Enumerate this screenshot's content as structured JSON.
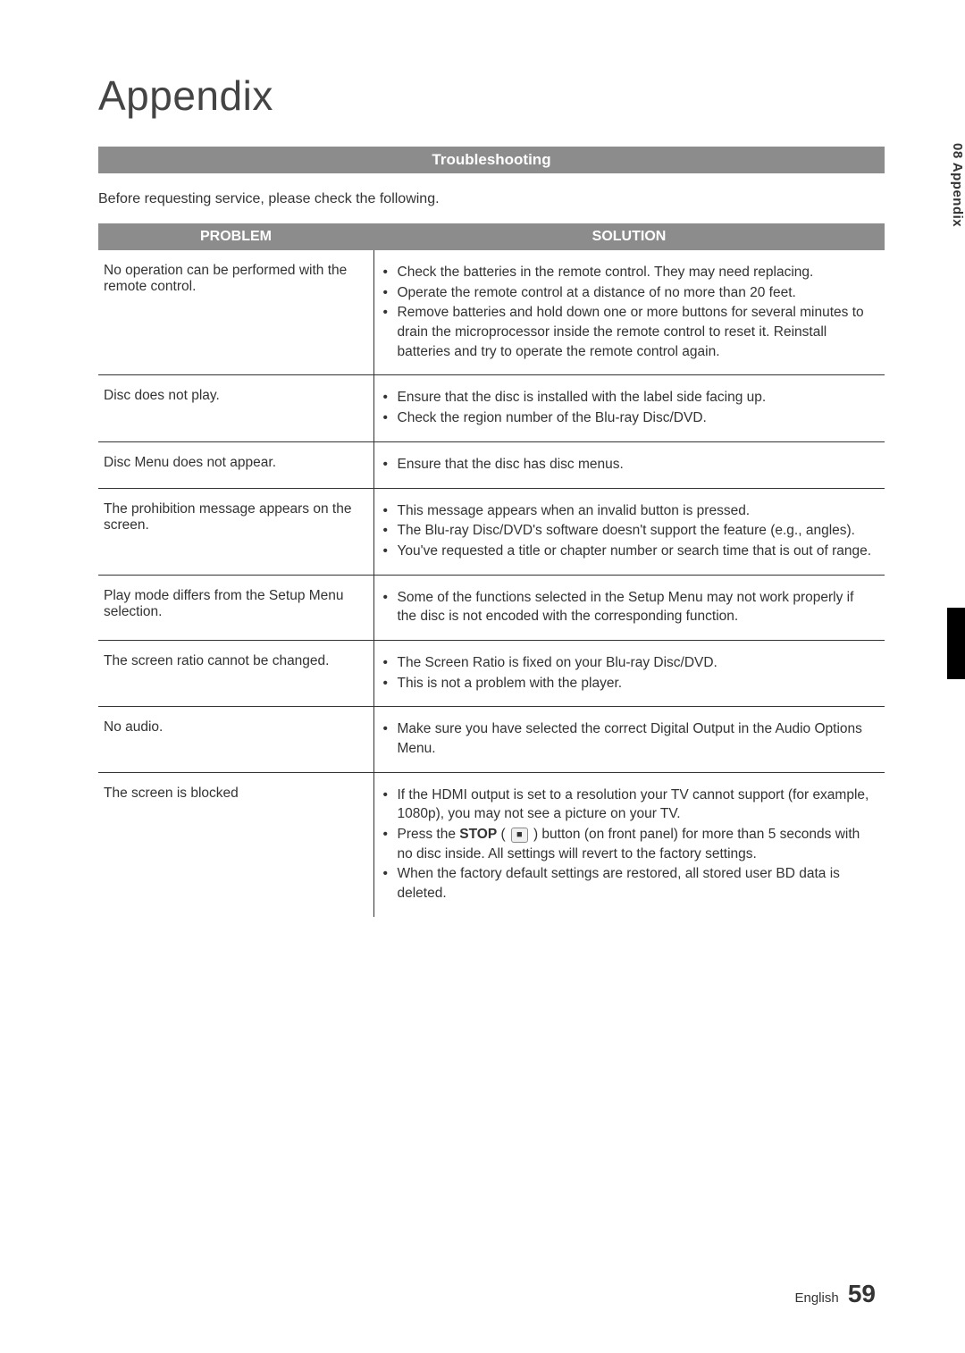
{
  "page_title": "Appendix",
  "section_header": "Troubleshooting",
  "intro_text": "Before requesting service, please check the following.",
  "side_tab": "08  Appendix",
  "table": {
    "columns": [
      "PROBLEM",
      "SOLUTION"
    ],
    "column_widths": [
      "35%",
      "65%"
    ],
    "header_bg": "#8c8c8c",
    "header_color": "#ffffff",
    "border_color": "#333333",
    "cell_fontsize": 15.5,
    "rows": [
      {
        "problem": "No operation can be performed with the remote control.",
        "solutions": [
          "Check the batteries in the remote control. They may need replacing.",
          "Operate the remote control at a distance of no more than 20 feet.",
          "Remove batteries and hold down one or more buttons for several minutes to drain the microprocessor inside the remote control to reset it. Reinstall batteries and try to operate the remote control again."
        ]
      },
      {
        "problem": "Disc does not play.",
        "solutions": [
          "Ensure that the disc is installed with the label side facing up.",
          "Check the region number of the Blu-ray Disc/DVD."
        ]
      },
      {
        "problem": "Disc Menu does not appear.",
        "solutions": [
          "Ensure that the disc has disc menus."
        ]
      },
      {
        "problem": "The prohibition message appears on the screen.",
        "solutions": [
          "This message appears when an invalid button is pressed.",
          "The Blu-ray Disc/DVD's software doesn't support the feature (e.g., angles).",
          "You've requested a title or chapter number or search time that is out of range."
        ]
      },
      {
        "problem": "Play mode differs from the Setup Menu selection.",
        "solutions": [
          "Some of the functions selected in the Setup Menu may not work properly if the disc is not encoded with the corresponding function."
        ]
      },
      {
        "problem": "The screen ratio cannot be changed.",
        "solutions": [
          "The Screen Ratio is fixed on your Blu-ray Disc/DVD.",
          "This is not a problem with the player."
        ]
      },
      {
        "problem": "No audio.",
        "solutions": [
          "Make sure you have selected the correct Digital Output in the Audio Options Menu."
        ]
      },
      {
        "problem": "The screen is blocked",
        "solutions_html": [
          "If the HDMI output is set to a resolution your TV cannot support (for example, 1080p), you may not see a picture on your TV.",
          "Press the <span class=\"bold\">STOP</span> ( <span class=\"stop-icon\" data-name=\"stop-icon\" data-interactable=\"false\">■</span> ) button (on front panel) for more than 5 seconds with no disc inside. All settings will revert to the factory settings.",
          "When the factory default settings are restored, all stored user BD data is deleted."
        ]
      }
    ]
  },
  "footer": {
    "lang": "English",
    "page_number": "59"
  },
  "colors": {
    "section_bar_bg": "#8c8c8c",
    "section_bar_text": "#ffffff",
    "body_text": "#333333",
    "background": "#ffffff",
    "black_strip": "#000000"
  },
  "typography": {
    "title_fontsize": 46,
    "title_weight": 300,
    "section_header_fontsize": 17,
    "intro_fontsize": 16,
    "footer_pagenum_fontsize": 28
  }
}
